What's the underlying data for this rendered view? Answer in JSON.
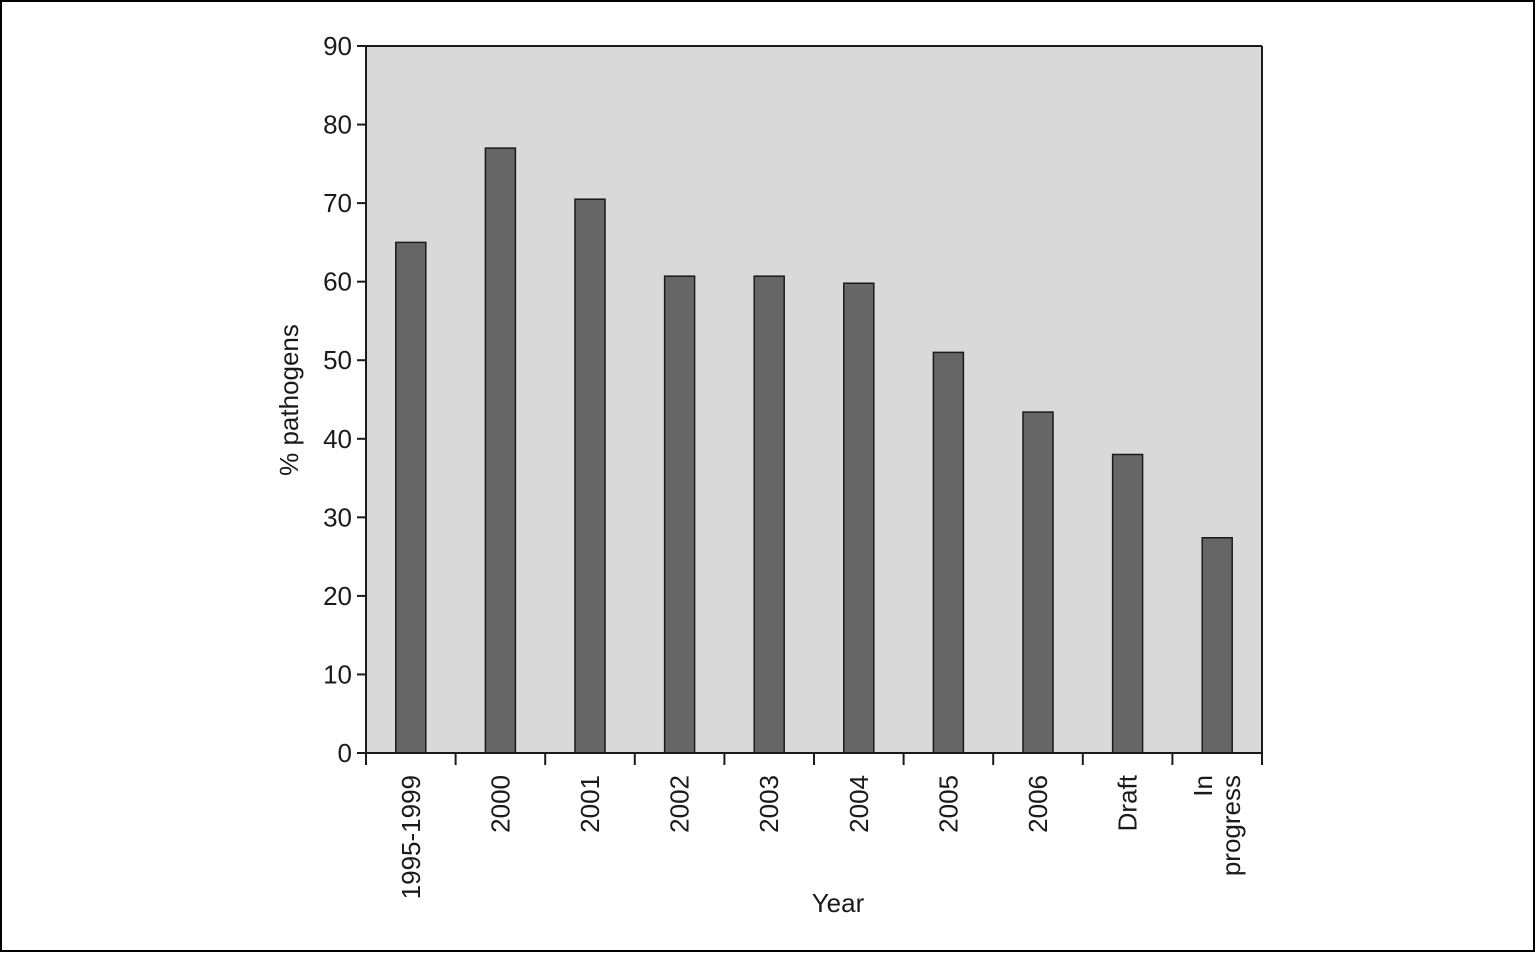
{
  "chart_data": {
    "type": "bar",
    "x_label": "Year",
    "y_label": "% pathogens",
    "categories": [
      "1995-1999",
      "2000",
      "2001",
      "2002",
      "2003",
      "2004",
      "2005",
      "2006",
      "Draft",
      "In progress"
    ],
    "values": [
      65,
      77,
      70.5,
      60.7,
      60.7,
      59.8,
      51,
      43.4,
      38,
      27.4
    ],
    "color": "#666666",
    "ylim": [
      0,
      90
    ],
    "yticks": [
      0,
      10,
      20,
      30,
      40,
      50,
      60,
      70,
      80,
      90
    ]
  }
}
